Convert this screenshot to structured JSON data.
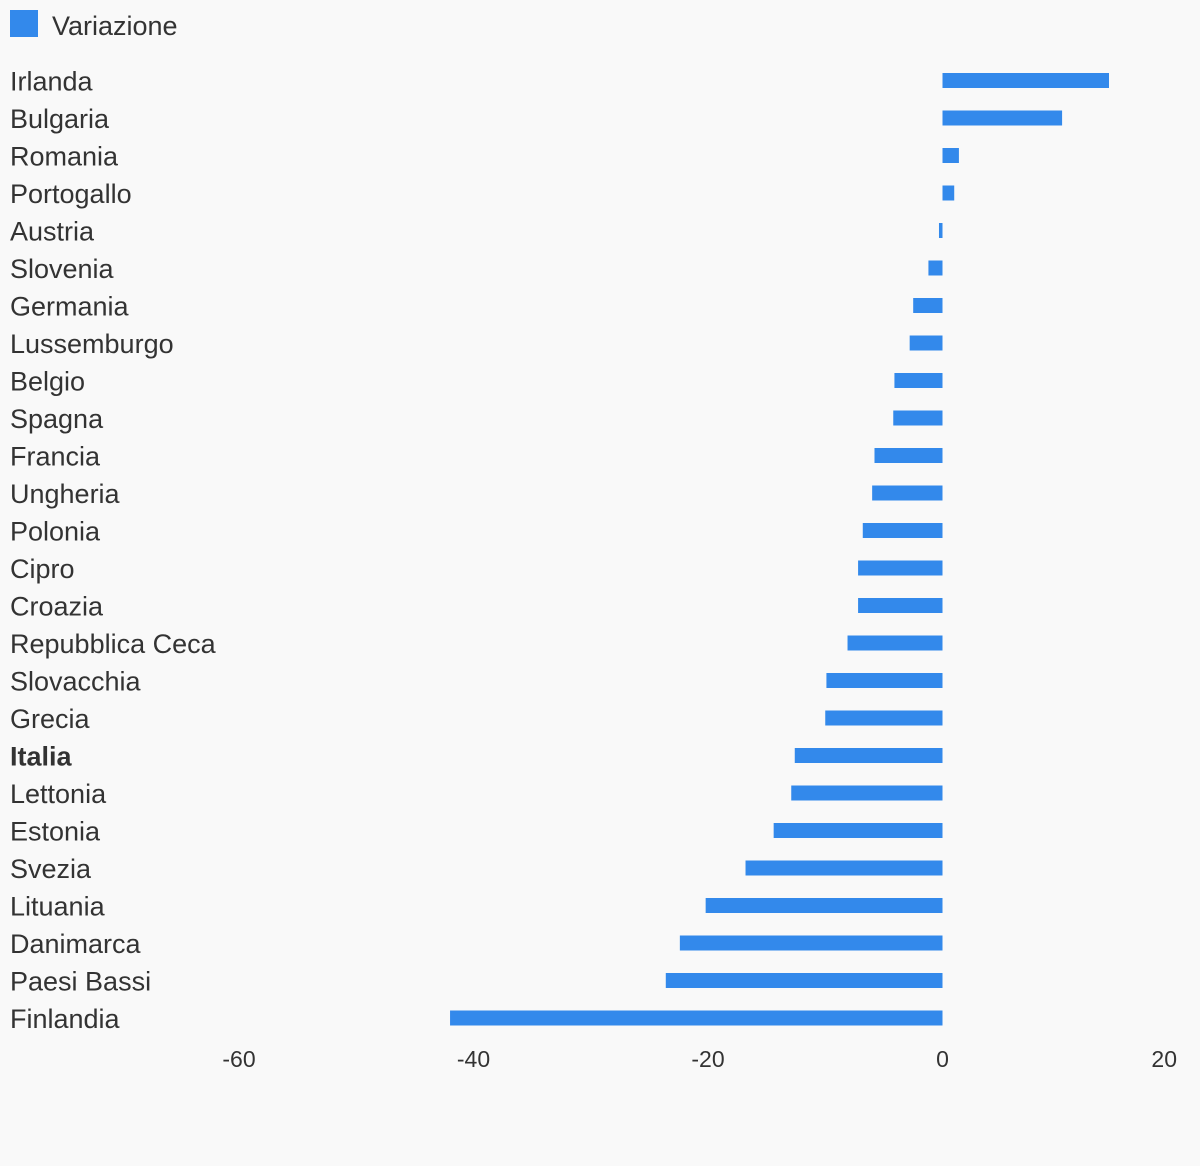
{
  "chart_data": {
    "type": "bar",
    "orientation": "horizontal",
    "categories": [
      "Irlanda",
      "Bulgaria",
      "Romania",
      "Portogallo",
      "Austria",
      "Slovenia",
      "Germania",
      "Lussemburgo",
      "Belgio",
      "Spagna",
      "Francia",
      "Ungheria",
      "Polonia",
      "Cipro",
      "Croazia",
      "Repubblica Ceca",
      "Slovacchia",
      "Grecia",
      "Italia",
      "Lettonia",
      "Estonia",
      "Svezia",
      "Lituania",
      "Danimarca",
      "Paesi Bassi",
      "Finlandia"
    ],
    "highlighted_category": "Italia",
    "series": [
      {
        "name": "Variazione",
        "color": "#3389eb",
        "values": [
          14.2,
          10.2,
          1.4,
          1.0,
          -0.3,
          -1.2,
          -2.5,
          -2.8,
          -4.1,
          -4.2,
          -5.8,
          -6.0,
          -6.8,
          -7.2,
          -7.2,
          -8.1,
          -9.9,
          -10.0,
          -12.6,
          -12.9,
          -14.4,
          -16.8,
          -20.2,
          -22.4,
          -23.6,
          -42.0
        ]
      }
    ],
    "xlim": [
      -60,
      20
    ],
    "x_ticks": [
      "-60",
      "-40",
      "-20",
      "0",
      "20"
    ],
    "grid": false,
    "legend": "top-left"
  }
}
